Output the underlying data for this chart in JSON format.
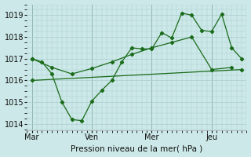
{
  "background_color": "#cce8e8",
  "grid_color": "#aacccc",
  "line_color": "#1a6b1a",
  "title": "Pression niveau de la mer( hPa )",
  "ylim": [
    1013.7,
    1019.5
  ],
  "yticks": [
    1014,
    1015,
    1016,
    1017,
    1018,
    1019
  ],
  "day_labels": [
    "Mar",
    "Ven",
    "Mer",
    "Jeu"
  ],
  "day_positions": [
    0,
    6,
    12,
    18
  ],
  "xlim": [
    -0.5,
    21.5
  ],
  "series1_x": [
    0,
    1,
    2,
    3,
    4,
    5,
    6,
    7,
    8,
    9,
    10,
    11,
    12,
    13,
    14,
    15,
    16,
    17,
    18,
    19,
    20,
    21
  ],
  "series1_y": [
    1017.0,
    1016.85,
    1016.3,
    1015.0,
    1014.2,
    1014.15,
    1015.05,
    1015.55,
    1016.0,
    1016.85,
    1017.5,
    1017.45,
    1017.45,
    1018.2,
    1017.95,
    1019.1,
    1019.0,
    1018.3,
    1018.25,
    1019.05,
    1017.5,
    1017.0
  ],
  "series2_x": [
    0,
    2,
    4,
    6,
    8,
    10,
    12,
    14,
    16,
    18,
    20
  ],
  "series2_y": [
    1017.0,
    1016.6,
    1016.3,
    1016.55,
    1016.85,
    1017.2,
    1017.5,
    1017.75,
    1018.0,
    1016.5,
    1016.6
  ],
  "series3_x": [
    0,
    21
  ],
  "series3_y": [
    1016.0,
    1016.5
  ]
}
